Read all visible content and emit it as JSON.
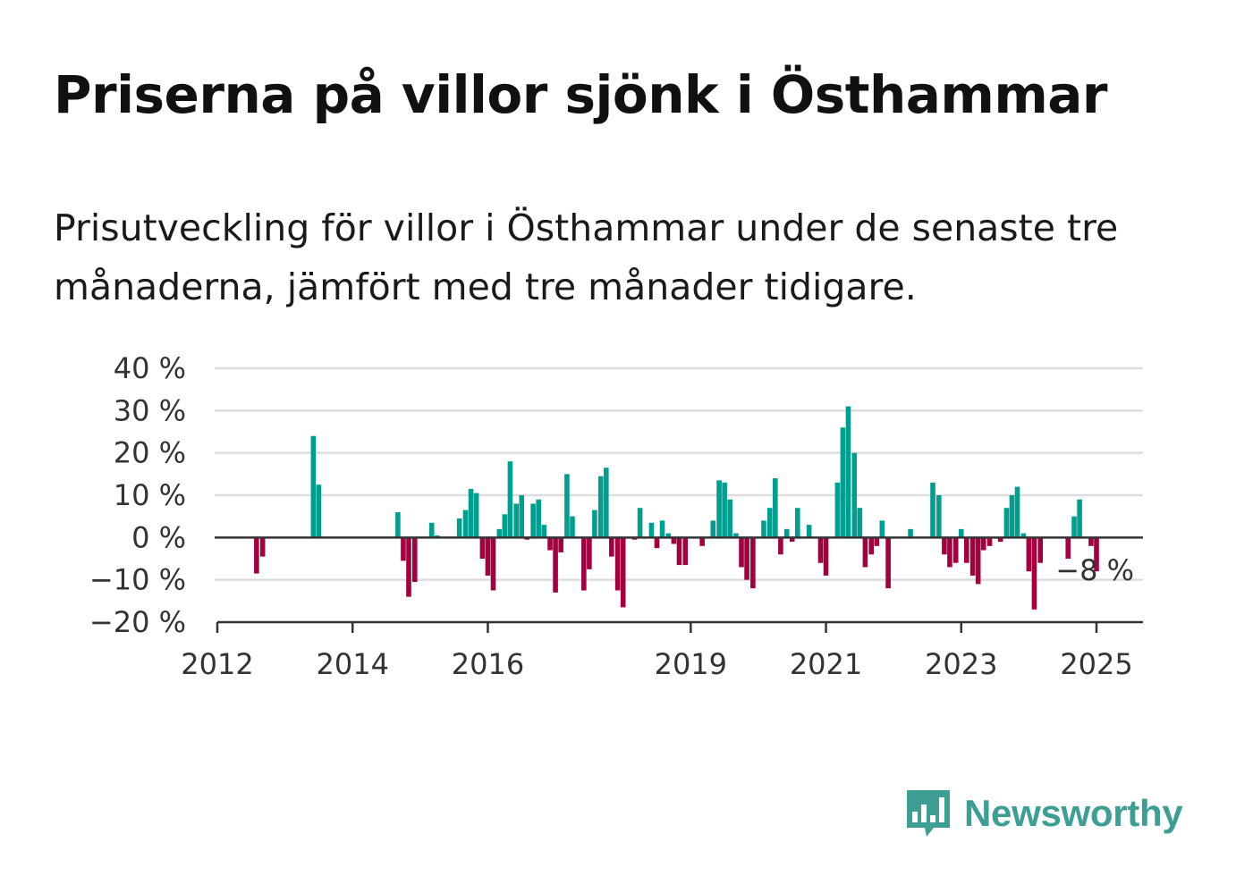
{
  "title": "Priserna på villor sjönk i Östhammar",
  "subtitle": "Prisutveckling för villor i Östhammar under de senaste tre månaderna, jämfört med tre månader tidigare.",
  "brand": {
    "name": "Newsworthy",
    "color": "#3d9e94",
    "icon": "bar-chart-speech-bubble-icon"
  },
  "colors": {
    "positive": "#009e8e",
    "negative": "#a3003f",
    "grid": "#dddddd",
    "zero_line": "#333333"
  },
  "chart_data": {
    "type": "bar",
    "title": "",
    "xlabel": "",
    "ylabel": "",
    "ylim": [
      -20,
      40
    ],
    "y_ticks": [
      "40 %",
      "30 %",
      "20 %",
      "10 %",
      "0 %",
      "−10 %",
      "−20 %"
    ],
    "y_tick_values": [
      40,
      30,
      20,
      10,
      0,
      -10,
      -20
    ],
    "x_ticks": [
      "2012",
      "2014",
      "2016",
      "2019",
      "2021",
      "2023",
      "2025"
    ],
    "x_tick_values": [
      2012,
      2014,
      2016,
      2019,
      2021,
      2023,
      2025
    ],
    "grid": true,
    "last_value_label": "−8 %",
    "series": [
      {
        "values": [
          [
            2012.58,
            -8.5
          ],
          [
            2012.67,
            -4.5
          ],
          [
            2013.42,
            24
          ],
          [
            2013.5,
            12.5
          ],
          [
            2014.67,
            6
          ],
          [
            2014.75,
            -5.5
          ],
          [
            2014.83,
            -14
          ],
          [
            2014.92,
            -10.5
          ],
          [
            2015.17,
            3.5
          ],
          [
            2015.25,
            0.5
          ],
          [
            2015.58,
            4.5
          ],
          [
            2015.67,
            6.5
          ],
          [
            2015.75,
            11.5
          ],
          [
            2015.83,
            10.5
          ],
          [
            2015.92,
            -5
          ],
          [
            2016.0,
            -9
          ],
          [
            2016.08,
            -12.5
          ],
          [
            2016.17,
            2
          ],
          [
            2016.25,
            5.5
          ],
          [
            2016.33,
            18
          ],
          [
            2016.42,
            8
          ],
          [
            2016.5,
            10
          ],
          [
            2016.58,
            -0.5
          ],
          [
            2016.67,
            8
          ],
          [
            2016.75,
            9
          ],
          [
            2016.83,
            3
          ],
          [
            2016.92,
            -3
          ],
          [
            2017.0,
            -13
          ],
          [
            2017.08,
            -3.5
          ],
          [
            2017.17,
            15
          ],
          [
            2017.25,
            5
          ],
          [
            2017.42,
            -12.5
          ],
          [
            2017.5,
            -7.5
          ],
          [
            2017.58,
            6.5
          ],
          [
            2017.67,
            14.5
          ],
          [
            2017.75,
            16.5
          ],
          [
            2017.83,
            -4.5
          ],
          [
            2017.92,
            -12.5
          ],
          [
            2018.0,
            -16.5
          ],
          [
            2018.17,
            -0.5
          ],
          [
            2018.25,
            7
          ],
          [
            2018.42,
            3.5
          ],
          [
            2018.5,
            -2.5
          ],
          [
            2018.58,
            4
          ],
          [
            2018.67,
            1
          ],
          [
            2018.75,
            -1.5
          ],
          [
            2018.83,
            -6.5
          ],
          [
            2018.92,
            -6.5
          ],
          [
            2019.17,
            -2
          ],
          [
            2019.33,
            4
          ],
          [
            2019.42,
            13.5
          ],
          [
            2019.5,
            13
          ],
          [
            2019.58,
            9
          ],
          [
            2019.67,
            1
          ],
          [
            2019.75,
            -7
          ],
          [
            2019.83,
            -10
          ],
          [
            2019.92,
            -12
          ],
          [
            2020.08,
            4
          ],
          [
            2020.17,
            7
          ],
          [
            2020.25,
            14
          ],
          [
            2020.33,
            -4
          ],
          [
            2020.42,
            2
          ],
          [
            2020.5,
            -1
          ],
          [
            2020.58,
            7
          ],
          [
            2020.75,
            3
          ],
          [
            2020.92,
            -6
          ],
          [
            2021.0,
            -9
          ],
          [
            2021.17,
            13
          ],
          [
            2021.25,
            26
          ],
          [
            2021.33,
            31
          ],
          [
            2021.42,
            20
          ],
          [
            2021.5,
            7
          ],
          [
            2021.58,
            -7
          ],
          [
            2021.67,
            -4
          ],
          [
            2021.75,
            -2
          ],
          [
            2021.83,
            4
          ],
          [
            2021.92,
            -12
          ],
          [
            2022.25,
            2
          ],
          [
            2022.58,
            13
          ],
          [
            2022.67,
            10
          ],
          [
            2022.75,
            -4
          ],
          [
            2022.83,
            -7
          ],
          [
            2022.92,
            -6
          ],
          [
            2023.0,
            2
          ],
          [
            2023.08,
            -6
          ],
          [
            2023.17,
            -9
          ],
          [
            2023.25,
            -11
          ],
          [
            2023.33,
            -3
          ],
          [
            2023.42,
            -2
          ],
          [
            2023.58,
            -1
          ],
          [
            2023.67,
            7
          ],
          [
            2023.75,
            10
          ],
          [
            2023.83,
            12
          ],
          [
            2023.92,
            1
          ],
          [
            2024.0,
            -8
          ],
          [
            2024.08,
            -17
          ],
          [
            2024.17,
            -6
          ],
          [
            2024.58,
            -5
          ],
          [
            2024.67,
            5
          ],
          [
            2024.75,
            9
          ],
          [
            2024.92,
            -2
          ],
          [
            2025.0,
            -8
          ]
        ]
      }
    ]
  }
}
